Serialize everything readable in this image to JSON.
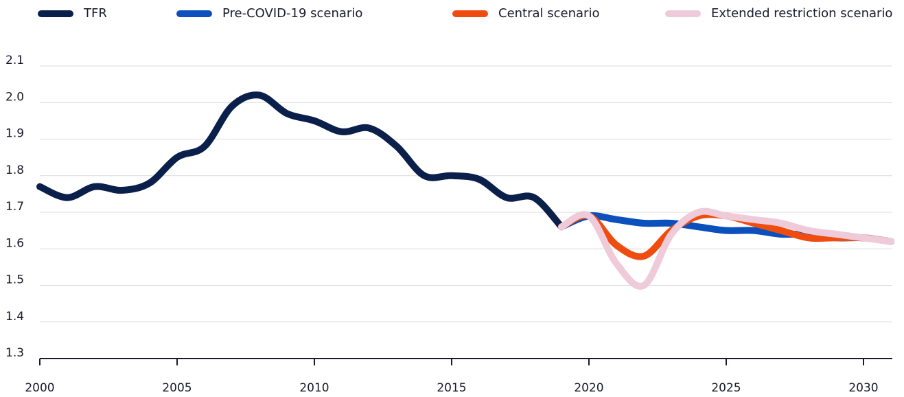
{
  "chart_data": {
    "type": "line",
    "x": [
      2000,
      2001,
      2002,
      2003,
      2004,
      2005,
      2006,
      2007,
      2008,
      2009,
      2010,
      2011,
      2012,
      2013,
      2014,
      2015,
      2016,
      2017,
      2018,
      2019,
      2020,
      2021,
      2022,
      2023,
      2024,
      2025,
      2026,
      2027,
      2028,
      2029,
      2030,
      2031
    ],
    "series": [
      {
        "name": "TFR",
        "color": "#0b1f4b",
        "values": [
          1.77,
          1.74,
          1.77,
          1.76,
          1.78,
          1.85,
          1.88,
          1.99,
          2.02,
          1.97,
          1.95,
          1.92,
          1.93,
          1.88,
          1.8,
          1.8,
          1.79,
          1.74,
          1.74,
          1.66,
          null,
          null,
          null,
          null,
          null,
          null,
          null,
          null,
          null,
          null,
          null,
          null
        ]
      },
      {
        "name": "Pre-COVID-19 scenario",
        "color": "#0b50bd",
        "values": [
          null,
          null,
          null,
          null,
          null,
          null,
          null,
          null,
          null,
          null,
          null,
          null,
          null,
          null,
          null,
          null,
          null,
          null,
          null,
          1.66,
          1.69,
          1.68,
          1.67,
          1.67,
          1.66,
          1.65,
          1.65,
          1.64,
          1.64,
          1.63,
          1.63,
          1.62
        ]
      },
      {
        "name": "Central scenario",
        "color": "#ef4d10",
        "values": [
          null,
          null,
          null,
          null,
          null,
          null,
          null,
          null,
          null,
          null,
          null,
          null,
          null,
          null,
          null,
          null,
          null,
          null,
          null,
          1.66,
          1.69,
          1.61,
          1.58,
          1.65,
          1.69,
          1.69,
          1.67,
          1.65,
          1.63,
          1.63,
          1.63,
          1.62
        ]
      },
      {
        "name": "Extended restriction scenario",
        "color": "#efcbd9",
        "values": [
          null,
          null,
          null,
          null,
          null,
          null,
          null,
          null,
          null,
          null,
          null,
          null,
          null,
          null,
          null,
          null,
          null,
          null,
          null,
          1.66,
          1.69,
          1.56,
          1.5,
          1.64,
          1.7,
          1.69,
          1.68,
          1.67,
          1.65,
          1.64,
          1.63,
          1.62
        ]
      }
    ],
    "xlim": [
      2000,
      2031
    ],
    "xticks": [
      2000,
      2005,
      2010,
      2015,
      2020,
      2025,
      2030
    ],
    "ylim": [
      1.3,
      2.1
    ],
    "yticks": [
      1.3,
      1.4,
      1.5,
      1.6,
      1.7,
      1.8,
      1.9,
      {
        "value": 2,
        "label": "2.0"
      },
      2.1
    ],
    "grid": true,
    "legend": "top"
  }
}
